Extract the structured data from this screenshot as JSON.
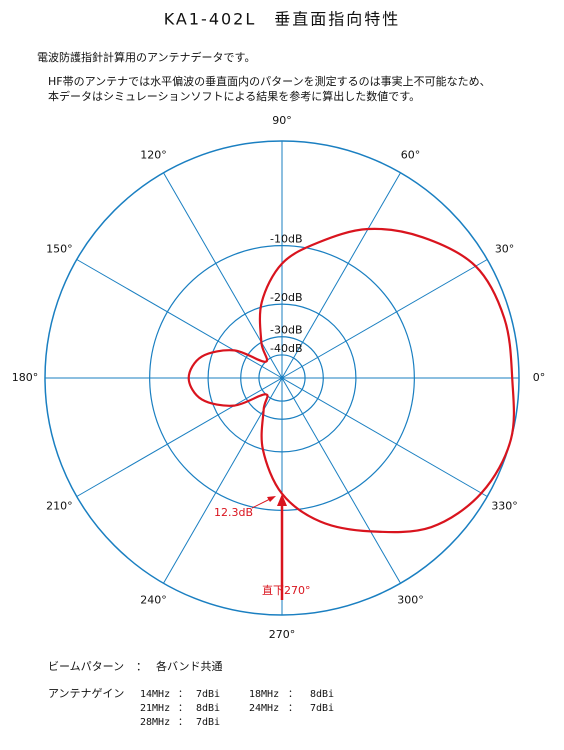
{
  "header": {
    "title": "KA1-402L　垂直面指向特性",
    "lines": [
      "電波防護指針計算用のアンテナデータです。",
      "HF帯のアンテナでは水平偏波の垂直面内のパターンを測定するのは事実上不可能なため、",
      "本データはシミュレーションソフトによる結果を参考に算出した数値です。"
    ]
  },
  "chart_data": {
    "type": "polar",
    "rscale": "arrl",
    "theta": [
      0,
      15,
      30,
      45,
      60,
      75,
      90,
      105,
      120,
      135,
      150,
      165,
      180,
      195,
      210,
      225,
      240,
      255,
      270,
      285,
      300,
      315,
      330,
      345
    ],
    "values": [
      -0.5,
      -0.5,
      -1,
      -3,
      -5.5,
      -9,
      -12.5,
      -19,
      -30,
      -40,
      -25,
      -18,
      -16,
      -18,
      -25,
      -40,
      -32,
      -20,
      -12.3,
      -8,
      -5,
      -2,
      -0.5,
      0
    ],
    "color": "#d9141e",
    "rlim": [
      -40,
      0
    ],
    "rticks": [
      {
        "value": -10,
        "label": "-10dB"
      },
      {
        "value": -20,
        "label": "-20dB"
      },
      {
        "value": -30,
        "label": "-30dB"
      },
      {
        "value": -40,
        "label": "-40dB"
      }
    ],
    "thetaticks": [
      {
        "value": 0,
        "label": "0°"
      },
      {
        "value": 30,
        "label": "30°"
      },
      {
        "value": 60,
        "label": "60°"
      },
      {
        "value": 90,
        "label": "90°"
      },
      {
        "value": 120,
        "label": "120°"
      },
      {
        "value": 150,
        "label": "150°"
      },
      {
        "value": 180,
        "label": "180°"
      },
      {
        "value": 210,
        "label": "210°"
      },
      {
        "value": 240,
        "label": "240°"
      },
      {
        "value": 270,
        "label": "270°"
      },
      {
        "value": 300,
        "label": "300°"
      },
      {
        "value": 330,
        "label": "330°"
      }
    ],
    "grid": true,
    "grid_color": "#1a7fc1",
    "annotations": [
      "12.3dB",
      "直下270°"
    ]
  },
  "footer": {
    "beam": [
      "ビームパターン",
      "：",
      "各バンド共通"
    ],
    "gain_label": "アンテナゲイン",
    "gains": [
      [
        "14MHz",
        "：",
        "7dBi"
      ],
      [
        "18MHz",
        "：",
        "8dBi"
      ],
      [
        "21MHz",
        "：",
        "8dBi"
      ],
      [
        "24MHz",
        "：",
        "7dBi"
      ],
      [
        "28MHz",
        "：",
        "7dBi"
      ]
    ]
  }
}
